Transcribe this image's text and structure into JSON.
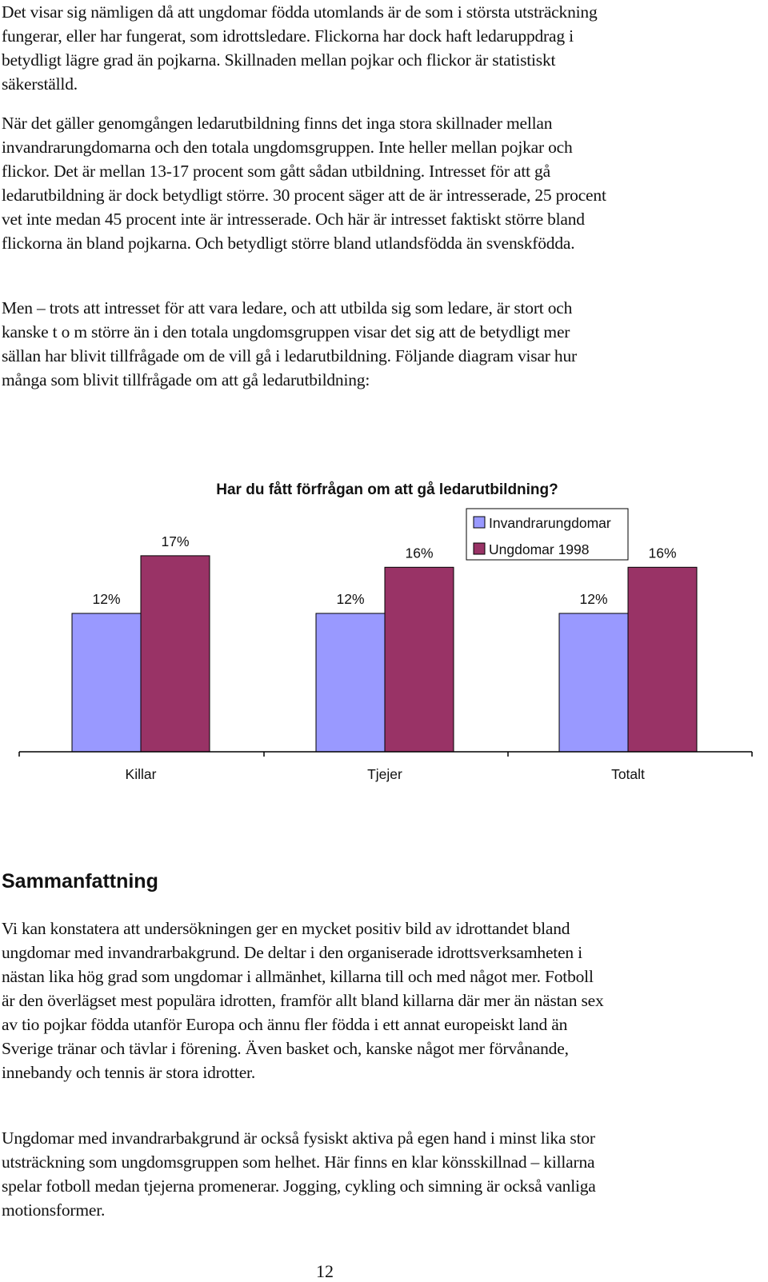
{
  "body": {
    "paragraphs": [
      "Det visar sig nämligen då att ungdomar födda utomlands är de som i största utsträckning fungerar, eller har fungerat, som idrottsledare. Flickorna har dock haft ledaruppdrag i betydligt lägre grad än pojkarna. Skillnaden mellan pojkar och flickor är statistiskt säkerställd.",
      "När det gäller genomgången ledarutbildning finns det inga stora skillnader mellan invandrarungdomarna och den totala ungdomsgruppen. Inte heller mellan pojkar och flickor. Det är mellan 13-17 procent som gått sådan utbildning. Intresset för att gå ledarutbildning är dock betydligt större. 30 procent säger att de är intresserade, 25 procent vet inte medan 45 procent inte är intresserade. Och här är intresset faktiskt större bland flickorna än bland pojkarna. Och betydligt större bland utlandsfödda än svenskfödda.",
      "Men – trots att intresset för att vara ledare, och att utbilda sig som ledare, är stort och kanske t o m större än i den totala ungdomsgruppen visar det sig att de betydligt mer sällan har blivit tillfrågade om de vill gå i ledarutbildning. Följande diagram visar hur många som blivit tillfrågade om att gå ledarutbildning:"
    ]
  },
  "summary": {
    "heading": "Sammanfattning",
    "paragraphs": [
      "Vi kan konstatera att undersökningen ger en mycket positiv bild av idrottandet bland ungdomar med invandrarbakgrund. De deltar i den organiserade idrottsverksamheten i nästan lika hög grad som ungdomar i allmänhet, killarna till och med något mer. Fotboll är den överlägset mest populära idrotten, framför allt bland killarna där mer än nästan sex av tio pojkar födda utanför Europa och ännu fler födda i ett annat europeiskt land än Sverige tränar och tävlar i förening. Även basket och, kanske något mer förvånande, innebandy och tennis är stora idrotter.",
      "Ungdomar med invandrarbakgrund är också fysiskt aktiva på egen hand i minst lika stor utsträckning som ungdomsgruppen som helhet. Här finns en klar könsskillnad – killarna spelar fotboll medan tjejerna promenerar. Jogging, cykling och simning är också vanliga motionsformer."
    ]
  },
  "page_number": "12",
  "chart_data": {
    "type": "bar",
    "title": "Har du fått förfrågan om att gå ledarutbildning?",
    "categories": [
      "Killar",
      "Tjejer",
      "Totalt"
    ],
    "series": [
      {
        "name": "Invandrarungdomar",
        "values": [
          12,
          12,
          12
        ],
        "labels": [
          "12%",
          "12%",
          "12%"
        ],
        "color": "#9999ff"
      },
      {
        "name": "Ungdomar 1998",
        "values": [
          17,
          16,
          16
        ],
        "labels": [
          "17%",
          "16%",
          "16%"
        ],
        "color": "#993366"
      }
    ],
    "legend": "top-right",
    "grid": false,
    "ylim": [
      0,
      21.5
    ],
    "xlabel": "",
    "ylabel": ""
  }
}
